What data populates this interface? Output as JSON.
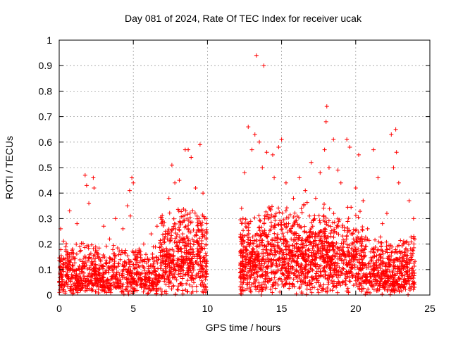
{
  "chart_data": {
    "type": "scatter",
    "title": "Day 081 of 2024, Rate Of TEC Index for receiver ucak",
    "xlabel": "GPS time / hours",
    "ylabel": "ROTI / TECUs",
    "xlim": [
      0,
      25
    ],
    "ylim": [
      0,
      1
    ],
    "xticks": [
      0,
      5,
      10,
      15,
      20,
      25
    ],
    "yticks": [
      0,
      0.1,
      0.2,
      0.3,
      0.4,
      0.5,
      0.6,
      0.7,
      0.8,
      0.9,
      1
    ],
    "xtick_labels": [
      "0",
      "5",
      "10",
      "15",
      "20",
      "25"
    ],
    "ytick_labels": [
      "0",
      "0.1",
      "0.2",
      "0.3",
      "0.4",
      "0.5",
      "0.6",
      "0.7",
      "0.8",
      "0.9",
      "1"
    ],
    "grid": true,
    "marker": "+",
    "color": "#ff0000",
    "data_gap_hours": [
      9.95,
      12.2
    ],
    "series": [
      {
        "name": "ROTI",
        "points": [
          [
            0.05,
            0.02
          ],
          [
            0.1,
            0.26
          ],
          [
            0.3,
            0.12
          ],
          [
            0.5,
            0.05
          ],
          [
            0.7,
            0.33
          ],
          [
            0.9,
            0.18
          ],
          [
            1.2,
            0.28
          ],
          [
            1.5,
            0.1
          ],
          [
            1.75,
            0.47
          ],
          [
            1.85,
            0.43
          ],
          [
            2.0,
            0.36
          ],
          [
            2.3,
            0.46
          ],
          [
            2.35,
            0.42
          ],
          [
            2.6,
            0.15
          ],
          [
            3.0,
            0.27
          ],
          [
            3.4,
            0.22
          ],
          [
            3.8,
            0.3
          ],
          [
            4.3,
            0.26
          ],
          [
            4.6,
            0.35
          ],
          [
            4.75,
            0.41
          ],
          [
            4.8,
            0.31
          ],
          [
            4.9,
            0.46
          ],
          [
            5.0,
            0.44
          ],
          [
            5.3,
            0.16
          ],
          [
            5.7,
            0.2
          ],
          [
            6.2,
            0.24
          ],
          [
            6.6,
            0.27
          ],
          [
            7.0,
            0.18
          ],
          [
            7.4,
            0.38
          ],
          [
            7.6,
            0.51
          ],
          [
            7.8,
            0.44
          ],
          [
            8.1,
            0.45
          ],
          [
            8.5,
            0.57
          ],
          [
            8.7,
            0.57
          ],
          [
            8.9,
            0.54
          ],
          [
            9.2,
            0.42
          ],
          [
            9.5,
            0.59
          ],
          [
            9.7,
            0.4
          ],
          [
            9.9,
            0.3
          ],
          [
            12.3,
            0.34
          ],
          [
            12.5,
            0.48
          ],
          [
            12.75,
            0.66
          ],
          [
            13.0,
            0.57
          ],
          [
            13.2,
            0.63
          ],
          [
            13.3,
            0.94
          ],
          [
            13.5,
            0.6
          ],
          [
            13.7,
            0.5
          ],
          [
            13.8,
            0.9
          ],
          [
            14.0,
            0.56
          ],
          [
            14.4,
            0.55
          ],
          [
            14.5,
            0.46
          ],
          [
            14.8,
            0.58
          ],
          [
            15.0,
            0.61
          ],
          [
            15.3,
            0.44
          ],
          [
            15.8,
            0.38
          ],
          [
            16.2,
            0.46
          ],
          [
            16.6,
            0.41
          ],
          [
            17.0,
            0.52
          ],
          [
            17.3,
            0.38
          ],
          [
            17.6,
            0.48
          ],
          [
            17.9,
            0.57
          ],
          [
            18.0,
            0.68
          ],
          [
            18.05,
            0.74
          ],
          [
            18.2,
            0.5
          ],
          [
            18.5,
            0.61
          ],
          [
            18.8,
            0.49
          ],
          [
            19.0,
            0.44
          ],
          [
            19.4,
            0.61
          ],
          [
            19.6,
            0.58
          ],
          [
            20.0,
            0.42
          ],
          [
            20.2,
            0.55
          ],
          [
            20.5,
            0.37
          ],
          [
            20.8,
            0.26
          ],
          [
            21.2,
            0.57
          ],
          [
            21.5,
            0.46
          ],
          [
            21.8,
            0.28
          ],
          [
            22.1,
            0.32
          ],
          [
            22.4,
            0.63
          ],
          [
            22.55,
            0.5
          ],
          [
            22.7,
            0.65
          ],
          [
            22.75,
            0.56
          ],
          [
            22.9,
            0.44
          ],
          [
            23.2,
            0.2
          ],
          [
            23.6,
            0.37
          ],
          [
            23.9,
            0.3
          ],
          [
            23.95,
            0.05
          ]
        ]
      }
    ],
    "dense_segments": [
      {
        "x0": 0.0,
        "x1": 2.5,
        "base": 0.06,
        "amp": 0.16,
        "count": 320
      },
      {
        "x0": 2.5,
        "x1": 6.8,
        "base": 0.06,
        "amp": 0.14,
        "count": 480
      },
      {
        "x0": 6.8,
        "x1": 9.95,
        "base": 0.15,
        "amp": 0.22,
        "count": 520
      },
      {
        "x0": 12.2,
        "x1": 13.8,
        "base": 0.12,
        "amp": 0.2,
        "count": 300
      },
      {
        "x0": 13.8,
        "x1": 17.5,
        "base": 0.18,
        "amp": 0.2,
        "count": 600
      },
      {
        "x0": 17.5,
        "x1": 20.5,
        "base": 0.17,
        "amp": 0.2,
        "count": 480
      },
      {
        "x0": 20.5,
        "x1": 24.0,
        "base": 0.08,
        "amp": 0.16,
        "count": 480
      }
    ]
  }
}
